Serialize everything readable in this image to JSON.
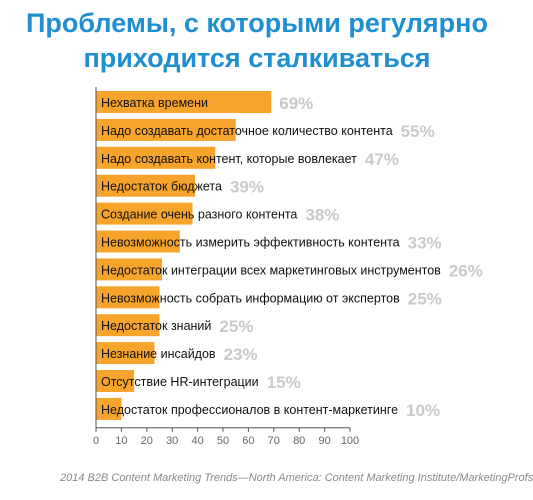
{
  "title_lines": [
    "Проблемы, с которыми регулярно",
    "приходится сталкиваться"
  ],
  "source": "2014 B2B Content Marketing Trends—North America: Content Marketing Institute/MarketingProfs",
  "colors": {
    "title": "#1f8fd2",
    "bar": "#f7a42c",
    "value_label": "#c9c9c9",
    "axis": "#555555",
    "label_text": "#111111"
  },
  "chart_data": {
    "type": "bar",
    "orientation": "horizontal",
    "title": "Проблемы, с которыми регулярно приходится сталкиваться",
    "categories": [
      "Нехватка времени",
      "Надо создавать достаточное количество контента",
      "Надо создавать контент, которые вовлекает",
      "Недостаток бюджета",
      "Создание очень разного контента",
      "Невозможность измерить эффективность контента",
      "Недостаток интеграции всех маркетинговых инструментов",
      "Невозможность собрать информацию от экспертов",
      "Недостаток знаний",
      "Незнание  инсайдов",
      "Отсутствие HR-интеграции",
      "Недостаток профессионалов в контент-маркетинге"
    ],
    "values": [
      69,
      55,
      47,
      39,
      38,
      33,
      26,
      25,
      25,
      23,
      15,
      10
    ],
    "value_labels": [
      "69%",
      "55%",
      "47%",
      "39%",
      "38%",
      "33%",
      "26%",
      "25%",
      "25%",
      "23%",
      "15%",
      "10%"
    ],
    "xlim": [
      0,
      100
    ],
    "xticks": [
      0,
      10,
      20,
      30,
      40,
      50,
      60,
      70,
      80,
      90,
      100
    ],
    "xlabel": "",
    "ylabel": "",
    "grid": false
  }
}
